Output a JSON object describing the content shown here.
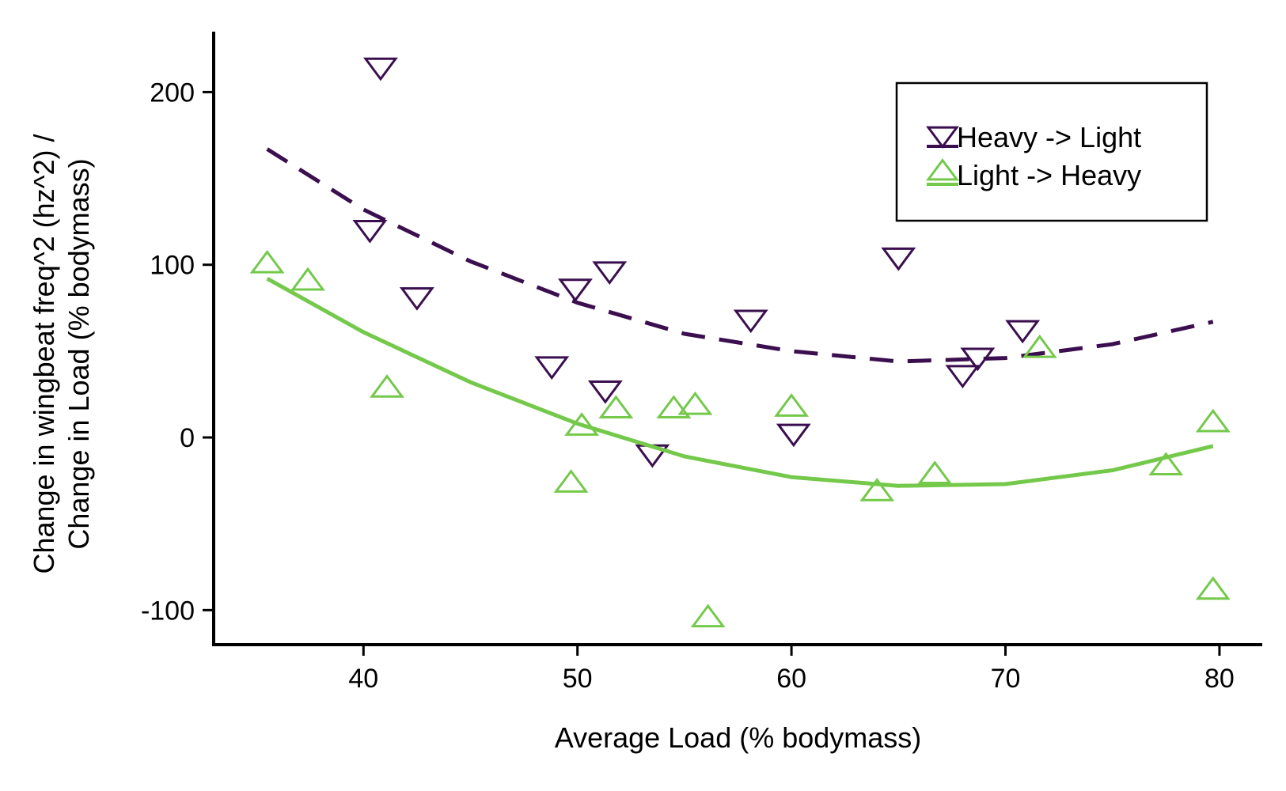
{
  "chart_data": {
    "type": "scatter",
    "title": "",
    "xlabel": "Average Load (% bodymass)",
    "ylabel_lines": [
      "Change in wingbeat freq^2 (hz^2) /",
      "Change in Load (% bodymass)"
    ],
    "xlim": [
      33,
      82
    ],
    "ylim": [
      -120,
      235
    ],
    "x_ticks": [
      40,
      50,
      60,
      70,
      80
    ],
    "y_ticks": [
      -100,
      0,
      100,
      200
    ],
    "legend_position": "top-right",
    "series": [
      {
        "name": "Heavy -> Light",
        "marker": "triangle-down",
        "color": "#3b0f4f",
        "fit_style": "dashed",
        "points": [
          {
            "x": 40.8,
            "y": 215
          },
          {
            "x": 40.3,
            "y": 121
          },
          {
            "x": 42.5,
            "y": 82
          },
          {
            "x": 49.9,
            "y": 87
          },
          {
            "x": 51.5,
            "y": 97
          },
          {
            "x": 48.8,
            "y": 42
          },
          {
            "x": 51.3,
            "y": 28
          },
          {
            "x": 53.5,
            "y": -9
          },
          {
            "x": 58.1,
            "y": 69
          },
          {
            "x": 60.1,
            "y": 3
          },
          {
            "x": 65.0,
            "y": 105
          },
          {
            "x": 68.0,
            "y": 37
          },
          {
            "x": 68.7,
            "y": 47
          },
          {
            "x": 70.8,
            "y": 63
          }
        ],
        "fit": [
          {
            "x": 35.5,
            "y": 167
          },
          {
            "x": 40,
            "y": 132
          },
          {
            "x": 45,
            "y": 102
          },
          {
            "x": 50,
            "y": 78
          },
          {
            "x": 55,
            "y": 60
          },
          {
            "x": 60,
            "y": 50
          },
          {
            "x": 65,
            "y": 44
          },
          {
            "x": 70,
            "y": 46
          },
          {
            "x": 75,
            "y": 54
          },
          {
            "x": 79.7,
            "y": 67
          }
        ]
      },
      {
        "name": "Light -> Heavy",
        "marker": "triangle-up",
        "color": "#74c94b",
        "fit_style": "solid",
        "points": [
          {
            "x": 35.5,
            "y": 100
          },
          {
            "x": 37.4,
            "y": 90
          },
          {
            "x": 41.1,
            "y": 28
          },
          {
            "x": 49.7,
            "y": -27
          },
          {
            "x": 50.2,
            "y": 6
          },
          {
            "x": 51.8,
            "y": 16
          },
          {
            "x": 54.5,
            "y": 16
          },
          {
            "x": 55.5,
            "y": 18
          },
          {
            "x": 56.1,
            "y": -105
          },
          {
            "x": 60.0,
            "y": 17
          },
          {
            "x": 64.0,
            "y": -32
          },
          {
            "x": 66.7,
            "y": -22
          },
          {
            "x": 71.6,
            "y": 51
          },
          {
            "x": 77.5,
            "y": -17
          },
          {
            "x": 79.7,
            "y": 8
          },
          {
            "x": 79.7,
            "y": -89
          }
        ],
        "fit": [
          {
            "x": 35.5,
            "y": 92
          },
          {
            "x": 40,
            "y": 61
          },
          {
            "x": 45,
            "y": 32
          },
          {
            "x": 50,
            "y": 8
          },
          {
            "x": 55,
            "y": -11
          },
          {
            "x": 60,
            "y": -23
          },
          {
            "x": 65,
            "y": -28
          },
          {
            "x": 70,
            "y": -27
          },
          {
            "x": 75,
            "y": -19
          },
          {
            "x": 79.7,
            "y": -5
          }
        ]
      }
    ]
  }
}
